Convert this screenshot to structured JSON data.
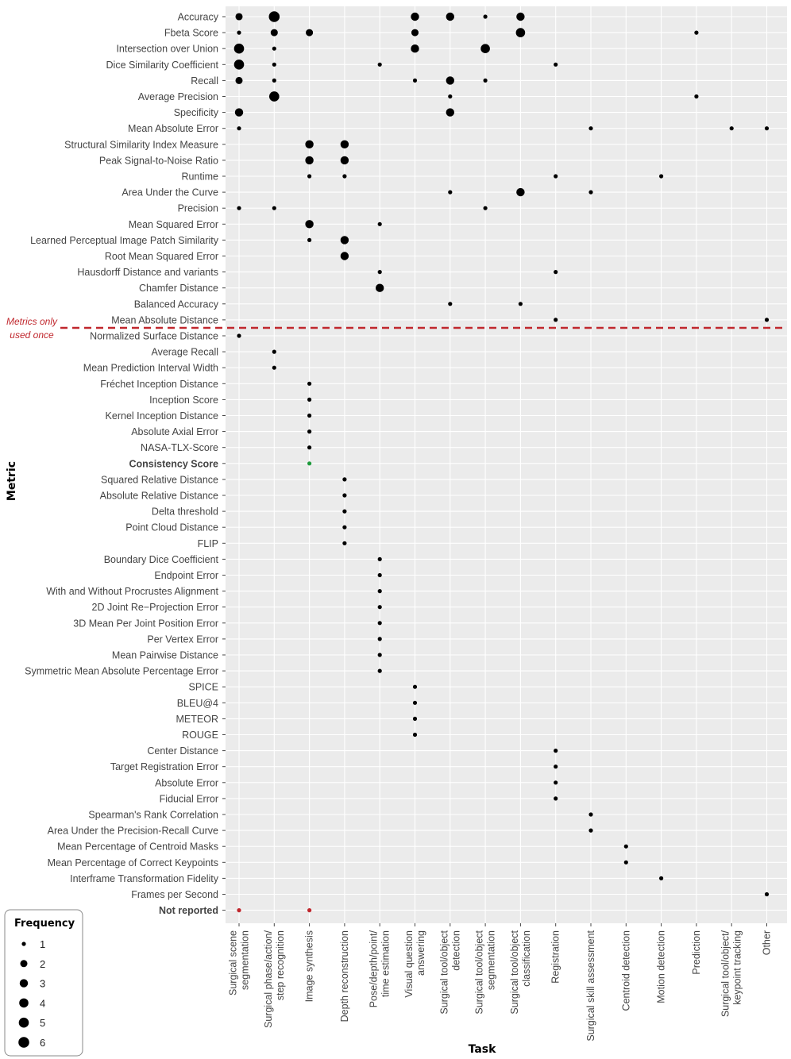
{
  "chart_data": {
    "type": "scatter",
    "xlabel": "Task",
    "ylabel": "Metric",
    "legend": {
      "title": "Frequency",
      "values": [
        1,
        2,
        3,
        4,
        5,
        6
      ],
      "position": "bottom-left"
    },
    "annotation": {
      "lines": [
        "Metrics only",
        "used once"
      ],
      "color": "#c0272d"
    },
    "highlight": {
      "Consistency Score": "#1e9a3c",
      "Not reported": "#c0272d"
    },
    "tasks": [
      [
        "Surgical scene",
        "segmentation"
      ],
      [
        "Surgical phase/action/",
        "step recognition"
      ],
      [
        "Image synthesis"
      ],
      [
        "Depth reconstruction"
      ],
      [
        "Pose/depth/point/",
        "time estimation"
      ],
      [
        "Visual question",
        "answering"
      ],
      [
        "Surgical tool/object",
        "detection"
      ],
      [
        "Surgical tool/object",
        "segmentation"
      ],
      [
        "Surgical tool/object",
        "classification"
      ],
      [
        "Registration"
      ],
      [
        "Surgical skill assessment"
      ],
      [
        "Centroid detection"
      ],
      [
        "Motion detection"
      ],
      [
        "Prediction"
      ],
      [
        "Surgical tool/object/",
        "keypoint tracking"
      ],
      [
        "Other"
      ]
    ],
    "metrics": [
      "Accuracy",
      "Fbeta Score",
      "Intersection over Union",
      "Dice Similarity Coefficient",
      "Recall",
      "Average Precision",
      "Specificity",
      "Mean Absolute Error",
      "Structural Similarity Index Measure",
      "Peak Signal-to-Noise Ratio",
      "Runtime",
      "Area Under the Curve",
      "Precision",
      "Mean Squared Error",
      "Learned Perceptual Image Patch Similarity",
      "Root Mean Squared Error",
      "Hausdorff Distance and variants",
      "Chamfer Distance",
      "Balanced Accuracy",
      "Mean Absolute Distance",
      "Normalized Surface Distance",
      "Average Recall",
      "Mean Prediction Interval Width",
      "Fréchet Inception Distance",
      "Inception Score",
      "Kernel Inception Distance",
      "Absolute Axial Error",
      "NASA-TLX-Score",
      "Consistency Score",
      "Squared Relative Distance",
      "Absolute Relative Distance",
      "Delta threshold",
      "Point Cloud Distance",
      "FLIP",
      "Boundary Dice Coefficient",
      "Endpoint Error",
      "With and Without Procrustes Alignment",
      "2D Joint Re−Projection Error",
      "3D Mean Per Joint Position Error",
      "Per Vertex Error",
      "Mean Pairwise Distance",
      "Symmetric Mean Absolute Percentage Error",
      "SPICE",
      "BLEU@4",
      "METEOR",
      "ROUGE",
      "Center Distance",
      "Target Registration Error",
      "Absolute Error",
      "Fiducial Error",
      "Spearman's Rank Correlation",
      "Area Under the Precision-Recall Curve",
      "Mean Percentage of Centroid Masks",
      "Mean Percentage of Correct Keypoints",
      "Interframe Transformation Fidelity",
      "Frames per Second",
      "Not reported"
    ],
    "points": [
      [
        0,
        0,
        2
      ],
      [
        0,
        1,
        6
      ],
      [
        0,
        5,
        3
      ],
      [
        0,
        6,
        3
      ],
      [
        0,
        7,
        1
      ],
      [
        0,
        8,
        3
      ],
      [
        1,
        0,
        1
      ],
      [
        1,
        1,
        2
      ],
      [
        1,
        2,
        2
      ],
      [
        1,
        5,
        2
      ],
      [
        1,
        13,
        1
      ],
      [
        1,
        8,
        4
      ],
      [
        2,
        0,
        5
      ],
      [
        2,
        1,
        1
      ],
      [
        2,
        5,
        3
      ],
      [
        2,
        7,
        4
      ],
      [
        3,
        0,
        5
      ],
      [
        3,
        1,
        1
      ],
      [
        3,
        4,
        1
      ],
      [
        3,
        9,
        1
      ],
      [
        4,
        0,
        2
      ],
      [
        4,
        1,
        1
      ],
      [
        4,
        5,
        1
      ],
      [
        4,
        6,
        3
      ],
      [
        4,
        7,
        1
      ],
      [
        5,
        1,
        5
      ],
      [
        5,
        6,
        1
      ],
      [
        5,
        13,
        1
      ],
      [
        6,
        0,
        3
      ],
      [
        6,
        6,
        3
      ],
      [
        7,
        0,
        1
      ],
      [
        7,
        10,
        1
      ],
      [
        7,
        14,
        1
      ],
      [
        7,
        15,
        1
      ],
      [
        8,
        2,
        3
      ],
      [
        8,
        3,
        3
      ],
      [
        9,
        2,
        3
      ],
      [
        9,
        3,
        3
      ],
      [
        10,
        2,
        1
      ],
      [
        10,
        3,
        1
      ],
      [
        10,
        9,
        1
      ],
      [
        10,
        12,
        1
      ],
      [
        11,
        6,
        1
      ],
      [
        11,
        8,
        3
      ],
      [
        11,
        10,
        1
      ],
      [
        12,
        0,
        1
      ],
      [
        12,
        1,
        1
      ],
      [
        12,
        7,
        1
      ],
      [
        13,
        2,
        3
      ],
      [
        13,
        4,
        1
      ],
      [
        14,
        2,
        1
      ],
      [
        14,
        3,
        3
      ],
      [
        15,
        3,
        3
      ],
      [
        16,
        4,
        1
      ],
      [
        16,
        9,
        1
      ],
      [
        17,
        4,
        3
      ],
      [
        18,
        6,
        1
      ],
      [
        18,
        8,
        1
      ],
      [
        19,
        9,
        1
      ],
      [
        19,
        15,
        1
      ],
      [
        20,
        0,
        1
      ],
      [
        21,
        1,
        1
      ],
      [
        22,
        1,
        1
      ],
      [
        23,
        2,
        1
      ],
      [
        24,
        2,
        1
      ],
      [
        25,
        2,
        1
      ],
      [
        26,
        2,
        1
      ],
      [
        27,
        2,
        1
      ],
      [
        28,
        2,
        1
      ],
      [
        29,
        3,
        1
      ],
      [
        30,
        3,
        1
      ],
      [
        31,
        3,
        1
      ],
      [
        32,
        3,
        1
      ],
      [
        33,
        3,
        1
      ],
      [
        34,
        4,
        1
      ],
      [
        35,
        4,
        1
      ],
      [
        36,
        4,
        1
      ],
      [
        37,
        4,
        1
      ],
      [
        38,
        4,
        1
      ],
      [
        39,
        4,
        1
      ],
      [
        40,
        4,
        1
      ],
      [
        41,
        4,
        1
      ],
      [
        42,
        5,
        1
      ],
      [
        43,
        5,
        1
      ],
      [
        44,
        5,
        1
      ],
      [
        45,
        5,
        1
      ],
      [
        46,
        9,
        1
      ],
      [
        47,
        9,
        1
      ],
      [
        48,
        9,
        1
      ],
      [
        49,
        9,
        1
      ],
      [
        50,
        10,
        1
      ],
      [
        51,
        10,
        1
      ],
      [
        52,
        11,
        1
      ],
      [
        53,
        11,
        1
      ],
      [
        54,
        12,
        1
      ],
      [
        55,
        15,
        1
      ],
      [
        56,
        0,
        1
      ],
      [
        56,
        2,
        1
      ]
    ]
  }
}
